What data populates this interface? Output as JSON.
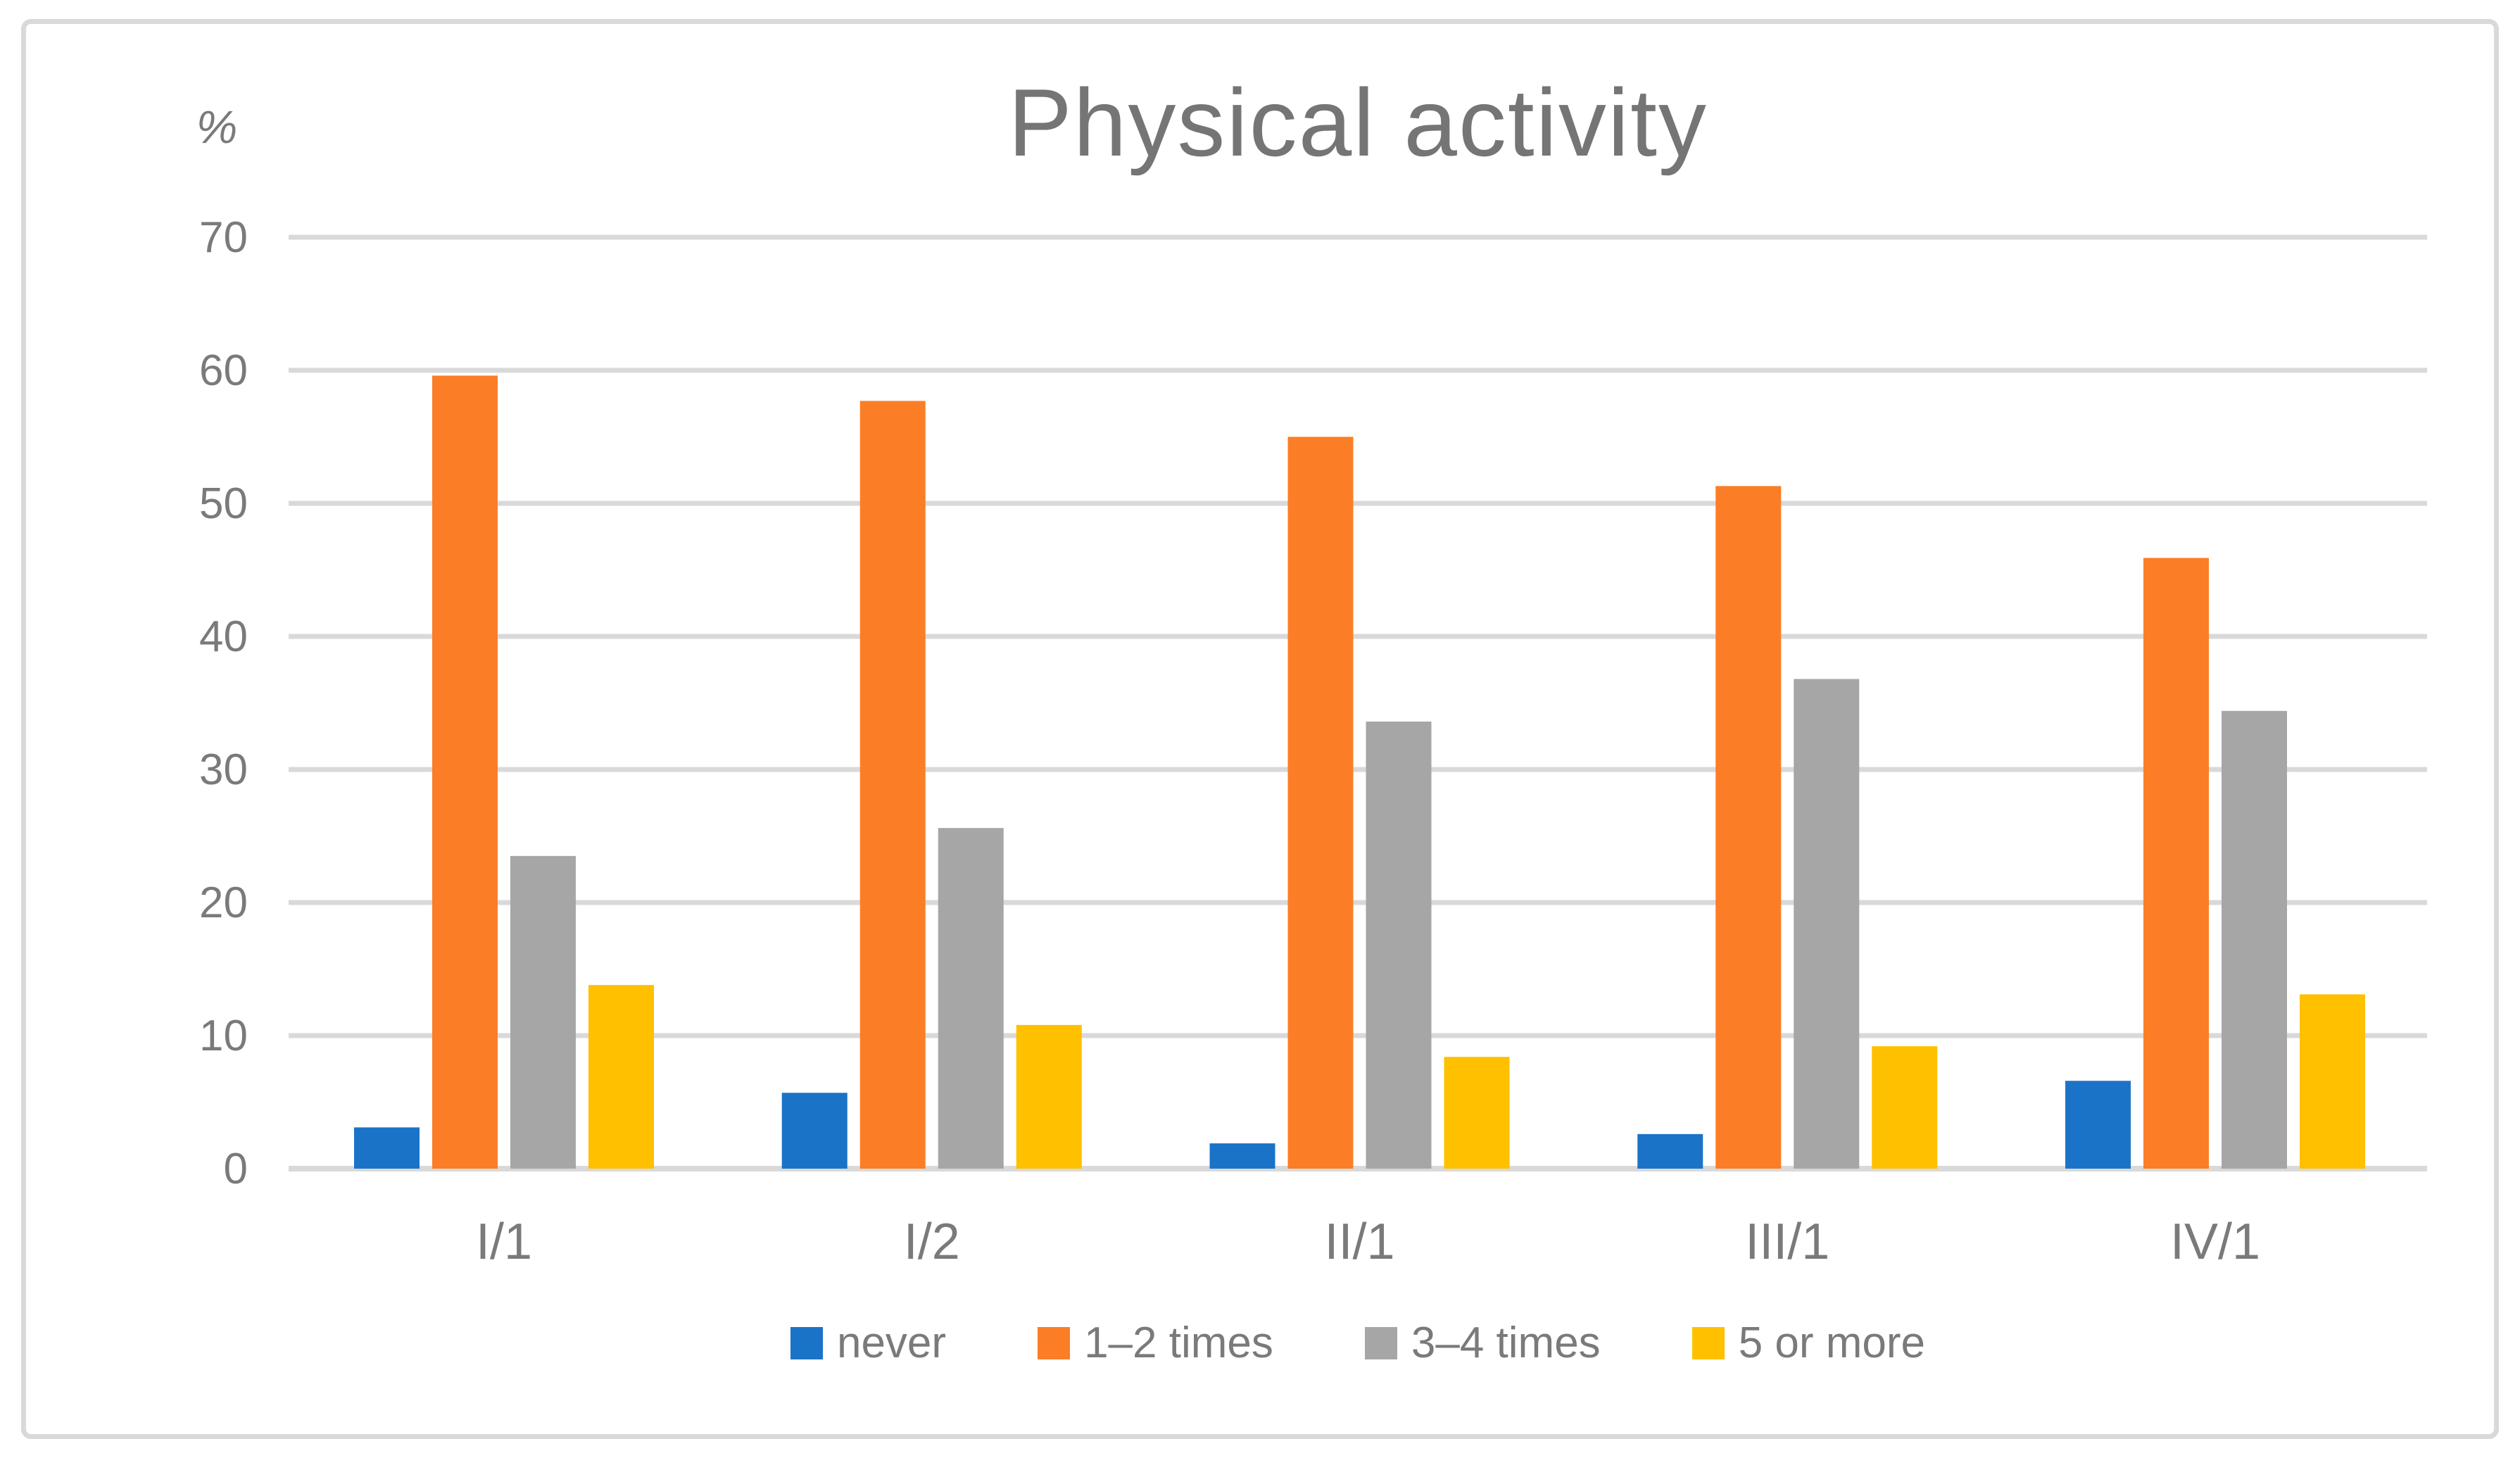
{
  "chart_data": {
    "type": "bar",
    "title": "Physical activity",
    "ylabel": "%",
    "xlabel": "",
    "categories": [
      "I/1",
      "I/2",
      "II/1",
      "III/1",
      "IV/1"
    ],
    "series": [
      {
        "name": "never",
        "color": "#1b73c8",
        "values": [
          3.1,
          5.7,
          1.9,
          2.6,
          6.6
        ]
      },
      {
        "name": "1–2 times",
        "color": "#fb7e26",
        "values": [
          59.6,
          57.7,
          55.0,
          51.3,
          45.9
        ]
      },
      {
        "name": "3–4 times",
        "color": "#a6a6a6",
        "values": [
          23.5,
          25.6,
          33.6,
          36.8,
          34.4
        ]
      },
      {
        "name": "5 or more",
        "color": "#ffc000",
        "values": [
          13.8,
          10.8,
          8.4,
          9.2,
          13.1
        ]
      }
    ],
    "ylim": [
      0,
      70
    ],
    "yticks": [
      0,
      10,
      20,
      30,
      40,
      50,
      60,
      70
    ],
    "grid": "horizontal",
    "legend_position": "bottom",
    "colors": {
      "gridline": "#d9d9d9",
      "axis_line": "#d9d9d9",
      "text": "#7a7a7a",
      "title_text": "#757575",
      "frame_border": "#d9d9d9",
      "background": "#ffffff"
    }
  }
}
